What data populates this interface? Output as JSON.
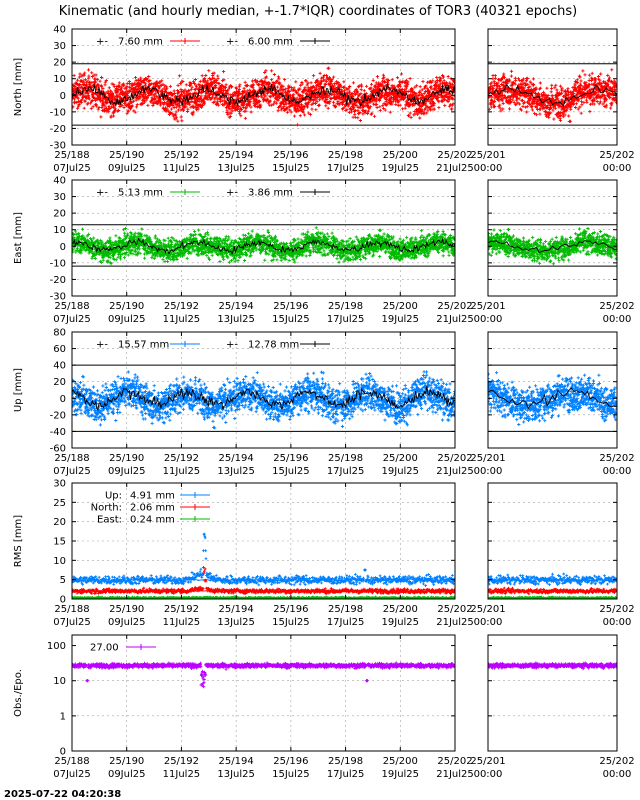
{
  "chart_data": {
    "title": "Kinematic (and hourly median, +-1.7*IQR) coordinates of TOR3 (40321 epochs)",
    "timestamp": "2025-07-22 04:20:38",
    "type": "scatter",
    "x_range_main": [
      "25/188 07Jul25",
      "25/202 21Jul25"
    ],
    "x_range_zoom": [
      "25/200.5",
      "25/202"
    ],
    "x_ticks_main": [
      {
        "doy": "25/188",
        "date": "07Jul25"
      },
      {
        "doy": "25/190",
        "date": "09Jul25"
      },
      {
        "doy": "25/192",
        "date": "11Jul25"
      },
      {
        "doy": "25/194",
        "date": "13Jul25"
      },
      {
        "doy": "25/196",
        "date": "15Jul25"
      },
      {
        "doy": "25/198",
        "date": "17Jul25"
      },
      {
        "doy": "25/200",
        "date": "19Jul25"
      },
      {
        "doy": "25/202",
        "date": "21Jul25"
      }
    ],
    "x_ticks_zoom": [
      {
        "doy": "25/201",
        "time": "00:00"
      },
      {
        "doy": "25/202",
        "time": "00:00"
      }
    ],
    "panels": [
      {
        "id": "north",
        "ylabel": "North [mm]",
        "ylim": [
          -30,
          40
        ],
        "yticks": [
          -30,
          -20,
          -10,
          0,
          10,
          20,
          30,
          40
        ],
        "ticklabels": [
          "-30",
          "-20",
          "-10",
          "0",
          "10",
          "20",
          "30",
          "40"
        ],
        "color": "#ff0000",
        "iqr_band": [
          -18,
          19
        ],
        "spread": 7.6,
        "median_spread": 6.0,
        "legend": [
          {
            "label": "7.60 mm",
            "color": "#ff0000",
            "marker": "+"
          },
          {
            "label": "6.00 mm",
            "color": "#000000",
            "marker": "+"
          }
        ]
      },
      {
        "id": "east",
        "ylabel": "East [mm]",
        "ylim": [
          -30,
          40
        ],
        "yticks": [
          -30,
          -20,
          -10,
          0,
          10,
          20,
          30,
          40
        ],
        "ticklabels": [
          "-30",
          "-20",
          "-10",
          "0",
          "10",
          "20",
          "30",
          "40"
        ],
        "color": "#00bb00",
        "iqr_band": [
          -12,
          13
        ],
        "spread": 5.13,
        "median_spread": 3.86,
        "legend": [
          {
            "label": "5.13 mm",
            "color": "#00bb00",
            "marker": "+"
          },
          {
            "label": "3.86 mm",
            "color": "#000000",
            "marker": "+"
          }
        ]
      },
      {
        "id": "up",
        "ylabel": "Up [mm]",
        "ylim": [
          -60,
          80
        ],
        "yticks": [
          -60,
          -40,
          -20,
          0,
          20,
          40,
          60,
          80
        ],
        "ticklabels": [
          "-60",
          "-40",
          "-20",
          "0",
          "20",
          "40",
          "60",
          "80"
        ],
        "color": "#0080ff",
        "iqr_band": [
          -40,
          40
        ],
        "spread": 15.57,
        "median_spread": 12.78,
        "legend": [
          {
            "label": "15.57 mm",
            "color": "#0080ff",
            "marker": "+"
          },
          {
            "label": "12.78 mm",
            "color": "#000000",
            "marker": "+"
          }
        ]
      },
      {
        "id": "rms",
        "ylabel": "RMS [mm]",
        "ylim": [
          0,
          30
        ],
        "yticks": [
          0,
          5,
          10,
          15,
          20,
          25,
          30
        ],
        "ticklabels": [
          "0",
          "5",
          "10",
          "15",
          "20",
          "25",
          "30"
        ],
        "series": [
          {
            "name": "Up:",
            "value_label": "4.91 mm",
            "color": "#0080ff",
            "level": 4.91
          },
          {
            "name": "North:",
            "value_label": "2.06 mm",
            "color": "#ff0000",
            "level": 2.06
          },
          {
            "name": "East:",
            "value_label": "0.24 mm",
            "color": "#00bb00",
            "level": 0.24
          }
        ]
      },
      {
        "id": "obs",
        "ylabel": "Obs./Epo.",
        "scale": "log",
        "ylim": [
          0.1,
          200
        ],
        "yticks": [
          0.1,
          1,
          10,
          100
        ],
        "ticklabels": [
          "0",
          "1",
          "10",
          "100"
        ],
        "color": "#bb00ff",
        "level": 27.0,
        "legend": [
          {
            "label": "27.00",
            "color": "#bb00ff",
            "marker": "+"
          }
        ]
      }
    ]
  }
}
